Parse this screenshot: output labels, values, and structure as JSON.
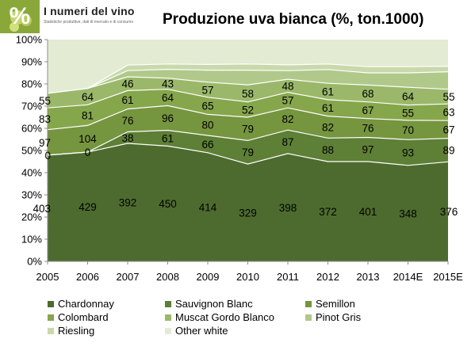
{
  "logo": {
    "title": "I numeri del vino",
    "subtitle": "Statistiche produttive, dati di mercato e di consumo"
  },
  "chart_data": {
    "type": "area",
    "stacking": "percent",
    "title": "Produzione uva bianca (%, ton.1000)",
    "categories": [
      "2005",
      "2006",
      "2007",
      "2008",
      "2009",
      "2010",
      "2011",
      "2012",
      "2013",
      "2014E",
      "2015E"
    ],
    "y_ticks": [
      "0%",
      "10%",
      "20%",
      "30%",
      "40%",
      "50%",
      "60%",
      "70%",
      "80%",
      "90%",
      "100%"
    ],
    "ylim": [
      0,
      100
    ],
    "grid": false,
    "legend_position": "bottom",
    "series": [
      {
        "name": "Chardonnay",
        "color": "#4e6b2f",
        "values": [
          403,
          429,
          392,
          450,
          414,
          329,
          398,
          372,
          401,
          348,
          376
        ]
      },
      {
        "name": "Sauvignon Blanc",
        "color": "#5e7f36",
        "values": [
          0,
          0,
          38,
          61,
          66,
          79,
          87,
          88,
          97,
          93,
          89
        ]
      },
      {
        "name": "Semillon",
        "color": "#76953f",
        "values": [
          97,
          104,
          76,
          96,
          80,
          79,
          82,
          82,
          76,
          70,
          67
        ]
      },
      {
        "name": "Colombard",
        "color": "#86a64c",
        "values": [
          83,
          81,
          61,
          64,
          65,
          52,
          57,
          61,
          67,
          55,
          63
        ]
      },
      {
        "name": "Muscat Gordo Blanco",
        "color": "#9bb86a",
        "values": [
          55,
          64,
          46,
          43,
          57,
          58,
          48,
          61,
          68,
          64,
          55
        ]
      },
      {
        "name": "Pinot Gris",
        "color": "#b0c98a",
        "values": [
          null,
          null,
          null,
          null,
          null,
          null,
          null,
          null,
          null,
          null,
          null
        ]
      },
      {
        "name": "Riesling",
        "color": "#c9d9ac",
        "values": [
          null,
          null,
          null,
          null,
          null,
          null,
          null,
          null,
          null,
          null,
          null
        ]
      },
      {
        "name": "Other white",
        "color": "#e3ebd3",
        "values": [
          null,
          null,
          null,
          null,
          null,
          null,
          null,
          null,
          null,
          null,
          null
        ]
      }
    ],
    "approx_cumulative_percent": [
      [
        47.9,
        49.3,
        53.2,
        52.0,
        49.0,
        43.9,
        48.6,
        45.0,
        45.0,
        43.3,
        44.9
      ],
      [
        47.9,
        49.3,
        58.4,
        59.1,
        56.8,
        54.5,
        59.2,
        55.6,
        55.9,
        54.9,
        55.5
      ],
      [
        59.4,
        61.3,
        68.7,
        70.2,
        66.3,
        65.0,
        69.2,
        65.5,
        64.4,
        63.6,
        63.5
      ],
      [
        69.2,
        70.6,
        77.0,
        77.6,
        74.0,
        71.9,
        76.2,
        72.9,
        71.9,
        70.5,
        71.0
      ],
      [
        75.8,
        78.0,
        83.2,
        82.6,
        80.8,
        79.6,
        82.1,
        80.3,
        79.5,
        78.5,
        77.6
      ],
      [
        75.8,
        78.0,
        86.0,
        86.6,
        86.2,
        86.2,
        86.0,
        86.5,
        85.0,
        85.0,
        85.5
      ],
      [
        75.8,
        78.0,
        88.5,
        89.0,
        88.8,
        89.0,
        88.6,
        89.0,
        87.8,
        87.8,
        88.0
      ],
      [
        100,
        100,
        100,
        100,
        100,
        100,
        100,
        100,
        100,
        100,
        100
      ]
    ]
  }
}
